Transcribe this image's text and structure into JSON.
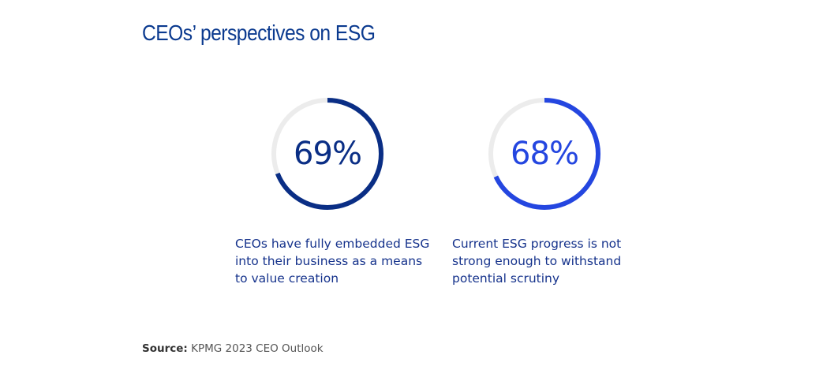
{
  "title": "CEOs’ perspectives on ESG",
  "colors": {
    "title": "#0b3a8f",
    "track": "#ececec",
    "caption": "#16338c",
    "source": "#555555"
  },
  "chart_data": [
    {
      "type": "pie",
      "variant": "donut",
      "value_percent": 69,
      "label": "69%",
      "caption": "CEOs have fully embedded ESG into their business as a means to value creation",
      "color": "#0a2e85"
    },
    {
      "type": "pie",
      "variant": "donut",
      "value_percent": 68,
      "label": "68%",
      "caption": "Current ESG progress is not strong enough to withstand potential scrutiny",
      "color": "#2446e0"
    }
  ],
  "source": {
    "label": "Source:",
    "text": "KPMG 2023 CEO Outlook"
  }
}
